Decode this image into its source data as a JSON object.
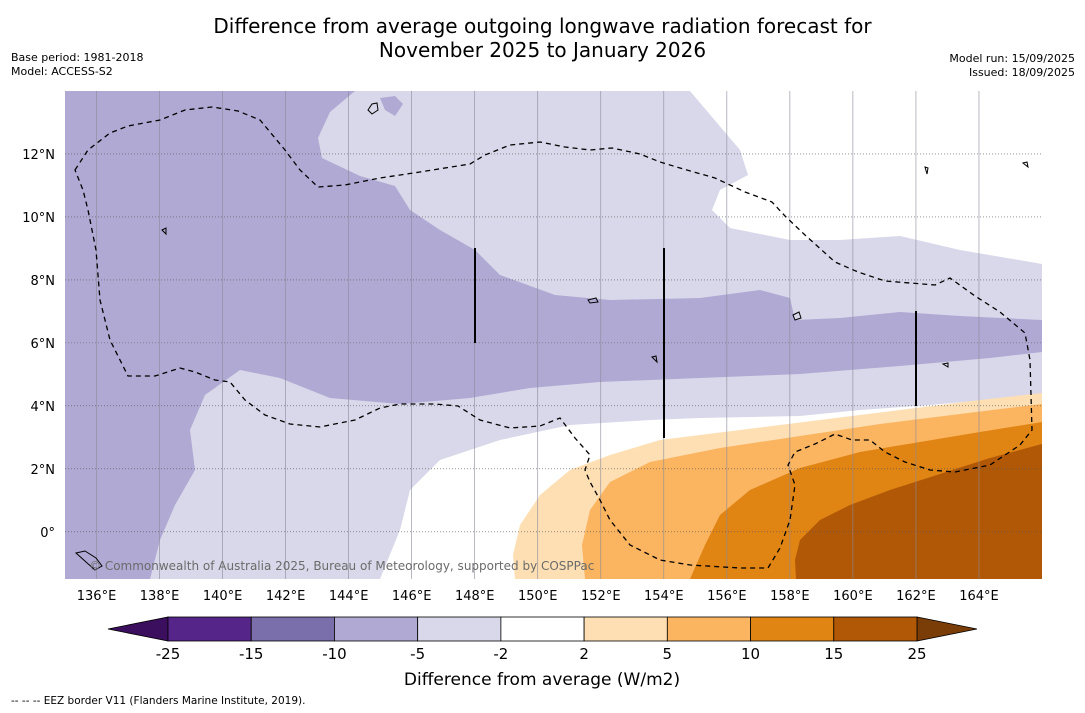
{
  "title_line1": "Difference from average outgoing longwave radiation forecast for",
  "title_line2": "November 2025 to January 2026",
  "meta_left": {
    "base_period": "Base period: 1981-2018",
    "model": "Model: ACCESS-S2"
  },
  "meta_right": {
    "model_run": "Model run: 15/09/2025",
    "issued": "Issued: 18/09/2025"
  },
  "map": {
    "lon_labels": [
      "136°E",
      "138°E",
      "140°E",
      "142°E",
      "144°E",
      "146°E",
      "148°E",
      "150°E",
      "152°E",
      "154°E",
      "156°E",
      "158°E",
      "160°E",
      "162°E",
      "164°E"
    ],
    "lat_labels": [
      "12°N",
      "10°N",
      "8°N",
      "6°N",
      "4°N",
      "2°N",
      "0°"
    ],
    "lon_range": [
      135,
      166
    ],
    "lat_range": [
      -1.5,
      14
    ],
    "copyright": "© Commonwealth of Australia 2025, Bureau of Meteorology, supported by COSPPac"
  },
  "colorbar": {
    "tick_labels": [
      "-25",
      "-15",
      "-10",
      "-5",
      "-2",
      "2",
      "5",
      "10",
      "15",
      "25"
    ],
    "bin_colors": [
      "#56258a",
      "#7b6fab",
      "#b0a9d3",
      "#d8d8ea",
      "#ffffff",
      "#fddfb3",
      "#fbb460",
      "#e08413",
      "#b05806"
    ],
    "extend_low_color": "#3b0f5e",
    "extend_high_color": "#7a3d08",
    "label": "Difference from average (W/m2)"
  },
  "legend_footnote": "--  --  -- EEZ border V11 (Flanders Marine Institute, 2019)."
}
